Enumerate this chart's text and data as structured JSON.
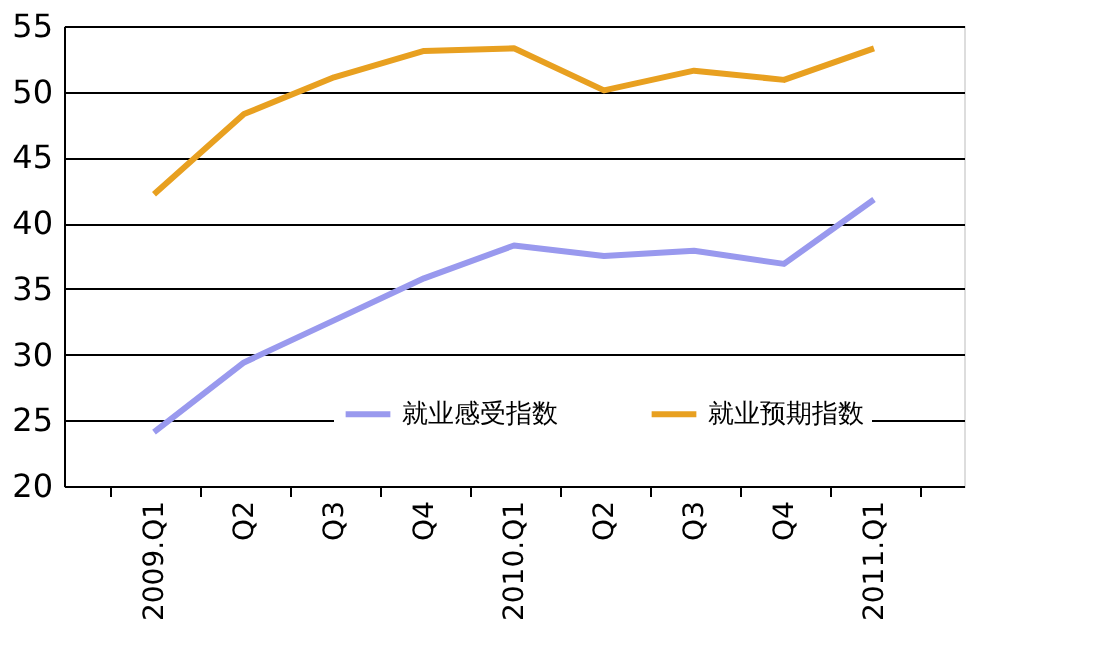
{
  "chart_data": {
    "type": "line",
    "categories": [
      "2009.Q1",
      "Q2",
      "Q3",
      "Q4",
      "2010.Q1",
      "Q2",
      "Q3",
      "Q4",
      "2011.Q1"
    ],
    "series": [
      {
        "name": "就业感受指数",
        "color": "#9999ee",
        "values": [
          24.1,
          29.4,
          32.6,
          35.8,
          38.3,
          37.5,
          37.9,
          36.9,
          41.8
        ]
      },
      {
        "name": "就业预期指数",
        "color": "#e8a020",
        "values": [
          42.2,
          48.3,
          51.1,
          53.1,
          53.3,
          50.1,
          51.6,
          50.9,
          53.3
        ]
      }
    ],
    "ylim": [
      20,
      55
    ],
    "yticks": [
      20,
      25,
      30,
      35,
      40,
      45,
      50,
      55
    ],
    "grid": "y",
    "legend": "bottom",
    "line_style": "solid"
  }
}
